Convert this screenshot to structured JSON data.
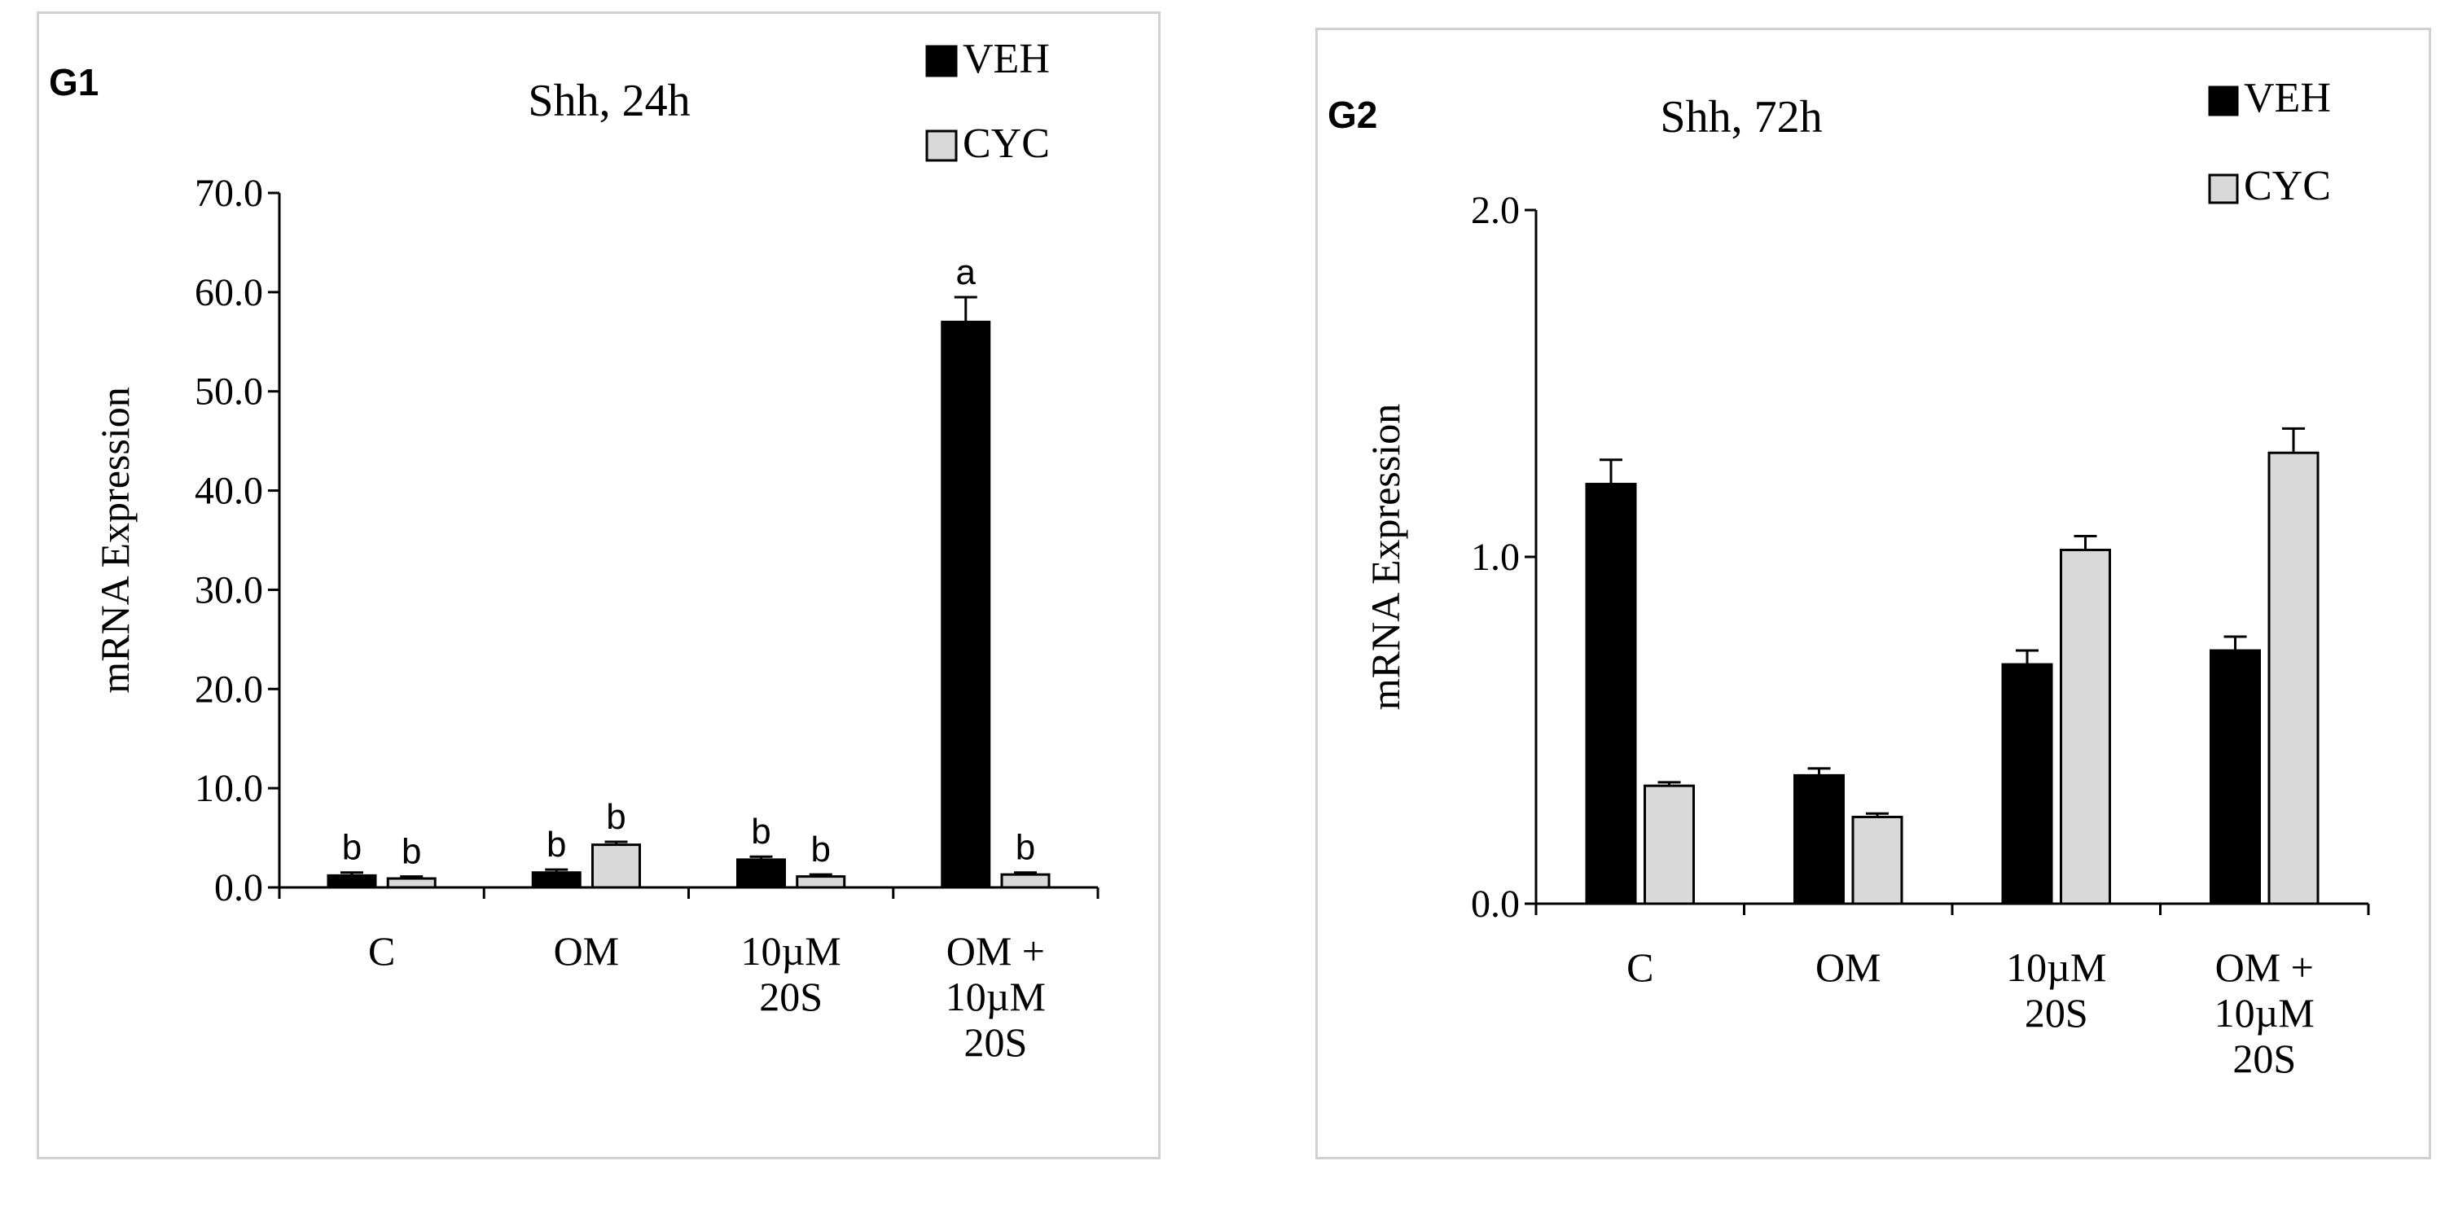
{
  "chart_data": [
    {
      "type": "bar",
      "panel_label": "G1",
      "title": "Shh, 24h",
      "xlabel": "",
      "ylabel": "mRNA Expression",
      "ylim": [
        0,
        70
      ],
      "yticks": [
        "0.0",
        "10.0",
        "20.0",
        "30.0",
        "40.0",
        "50.0",
        "60.0",
        "70.0"
      ],
      "categories": [
        {
          "lines": [
            "C"
          ]
        },
        {
          "lines": [
            "OM"
          ]
        },
        {
          "lines": [
            "10µM",
            "20S"
          ]
        },
        {
          "lines": [
            "OM +",
            "10µM",
            "20S"
          ]
        }
      ],
      "series": [
        {
          "name": "VEH",
          "color": "#000000",
          "values": [
            1.2,
            1.5,
            2.8,
            57.0
          ],
          "errors": [
            0.3,
            0.3,
            0.3,
            2.5
          ],
          "annotations": [
            "b",
            "b",
            "b",
            "a"
          ]
        },
        {
          "name": "CYC",
          "color": "#d9d9d9",
          "values": [
            0.9,
            4.3,
            1.1,
            1.3
          ],
          "errors": [
            0.2,
            0.3,
            0.2,
            0.2
          ],
          "annotations": [
            "b",
            "b",
            "b",
            "b"
          ]
        }
      ],
      "legend": "top-right"
    },
    {
      "type": "bar",
      "panel_label": "G2",
      "title": "Shh, 72h",
      "xlabel": "",
      "ylabel": "mRNA Expression",
      "ylim": [
        0,
        2.0
      ],
      "yticks": [
        "0.0",
        "1.0",
        "2.0"
      ],
      "categories": [
        {
          "lines": [
            "C"
          ]
        },
        {
          "lines": [
            "OM"
          ]
        },
        {
          "lines": [
            "10µM",
            "20S"
          ]
        },
        {
          "lines": [
            "OM +",
            "10µM",
            "20S"
          ]
        }
      ],
      "series": [
        {
          "name": "VEH",
          "color": "#000000",
          "values": [
            1.21,
            0.37,
            0.69,
            0.73
          ],
          "errors": [
            0.07,
            0.02,
            0.04,
            0.04
          ],
          "annotations": [
            "",
            "",
            "",
            ""
          ]
        },
        {
          "name": "CYC",
          "color": "#d9d9d9",
          "values": [
            0.34,
            0.25,
            1.02,
            1.3
          ],
          "errors": [
            0.01,
            0.01,
            0.04,
            0.07
          ],
          "annotations": [
            "",
            "",
            "",
            ""
          ]
        }
      ],
      "legend": "top-right"
    }
  ]
}
